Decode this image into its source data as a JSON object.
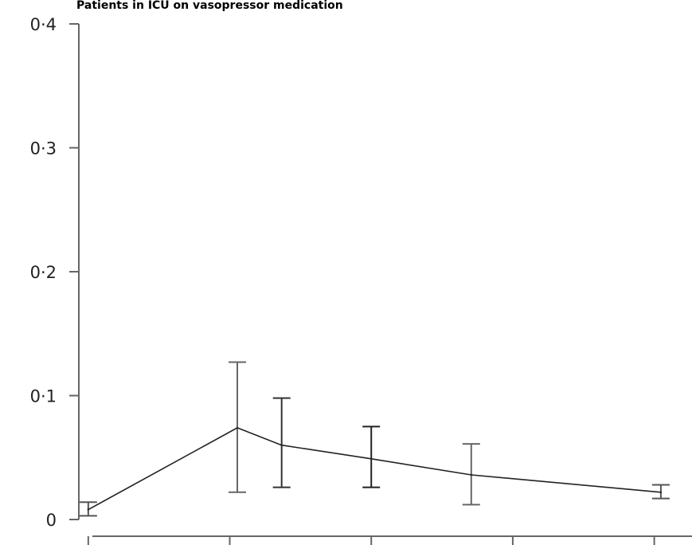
{
  "chart_data": {
    "type": "line",
    "title": "Patients in ICU on vasopressor medication",
    "xlabel": "",
    "ylabel": "",
    "ylim": [
      0,
      0.4
    ],
    "xlim": [
      0,
      6.5
    ],
    "y_ticks": [
      {
        "value": 0,
        "label": "0"
      },
      {
        "value": 0.1,
        "label": "0·1"
      },
      {
        "value": 0.2,
        "label": "0·2"
      },
      {
        "value": 0.3,
        "label": "0·3"
      },
      {
        "value": 0.4,
        "label": "0·4"
      }
    ],
    "x_ticks": [
      0.1,
      1.6,
      3.1,
      4.6,
      6.1
    ],
    "grid": false,
    "series": [
      {
        "points": [
          {
            "x": 0.1,
            "y": 0.008,
            "lo": 0.003,
            "hi": 0.014
          },
          {
            "x": 1.68,
            "y": 0.074,
            "lo": 0.022,
            "hi": 0.127
          },
          {
            "x": 2.15,
            "y": 0.06,
            "lo": 0.026,
            "hi": 0.098
          },
          {
            "x": 3.1,
            "y": 0.049,
            "lo": 0.026,
            "hi": 0.075
          },
          {
            "x": 4.16,
            "y": 0.036,
            "lo": 0.012,
            "hi": 0.061
          },
          {
            "x": 6.17,
            "y": 0.022,
            "lo": 0.017,
            "hi": 0.028
          }
        ]
      }
    ],
    "colors": {
      "axis": "#666666",
      "line": "#222222",
      "errorbar": [
        "#555555",
        "#666666",
        "#333333",
        "#222222",
        "#666666",
        "#555555"
      ]
    }
  }
}
